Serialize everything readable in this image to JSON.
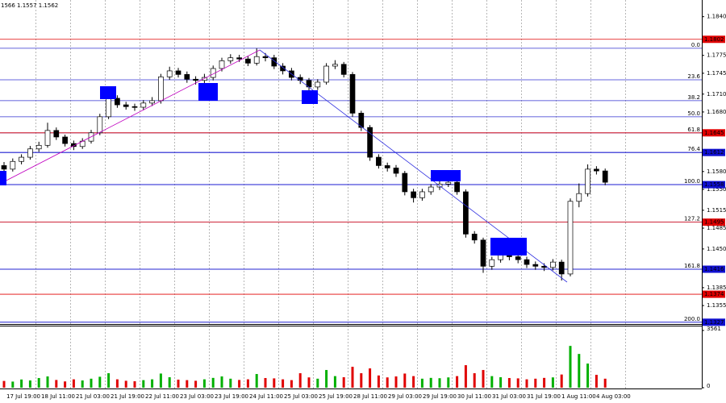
{
  "chart_data": {
    "type": "candlestick",
    "subtitle": "1566 1.1557 1.1562",
    "ylim": [
      1.1324,
      1.1868
    ],
    "yticks": [
      {
        "value": 1.184,
        "label": "1.1840"
      },
      1.1775,
      1.1745,
      {
        "value": 1.171,
        "label": "1.1710"
      },
      {
        "value": 1.168,
        "label": "1.1680"
      },
      {
        "value": 1.158,
        "label": "1.1580"
      },
      {
        "value": 1.155,
        "label": "1.1550"
      },
      1.1515,
      1.1485,
      {
        "value": 1.145,
        "label": "1.1450"
      },
      1.1385,
      1.1355
    ],
    "fib": [
      {
        "label": "0.0",
        "price": 1.1787
      },
      {
        "label": "23.6",
        "price": 1.1734
      },
      {
        "label": "38.2",
        "price": 1.1699
      },
      {
        "label": "50.0",
        "price": 1.1672
      },
      {
        "label": "61.8",
        "price": 1.1645
      },
      {
        "label": "76.4",
        "price": 1.1612
      },
      {
        "label": "100.0",
        "price": 1.1558
      },
      {
        "label": "127.2",
        "price": 1.1495
      },
      {
        "label": "161.8",
        "price": 1.1416
      },
      {
        "label": "200.0",
        "price": 1.1327
      }
    ],
    "levels": [
      {
        "price": 1.1802,
        "color": "#e00000"
      },
      {
        "price": 1.1645,
        "color": "#e00000"
      },
      {
        "price": 1.1612,
        "color": "#1010d0"
      },
      {
        "price": 1.1558,
        "color": "#1010d0"
      },
      {
        "price": 1.1495,
        "color": "#e00000"
      },
      {
        "price": 1.1416,
        "color": "#1010d0"
      },
      {
        "price": 1.1374,
        "color": "#e00000"
      },
      {
        "price": 1.1327,
        "color": "#1010d0"
      }
    ],
    "fib_color": "#3030d0",
    "up_color": "#ffffff",
    "down_color": "#000000",
    "wick_color": "#000000",
    "open": [
      1.159,
      1.1584,
      1.1597,
      1.1604,
      1.1618,
      1.1624,
      1.1649,
      1.1638,
      1.1627,
      1.1622,
      1.1631,
      1.1645,
      1.1672,
      1.1703,
      1.1692,
      1.1689,
      1.1688,
      1.1695,
      1.1699,
      1.1739,
      1.1749,
      1.1743,
      1.1735,
      1.1733,
      1.1738,
      1.1753,
      1.1766,
      1.1771,
      1.1769,
      1.1762,
      1.1773,
      1.1771,
      1.1757,
      1.1749,
      1.1738,
      1.1733,
      1.1722,
      1.173,
      1.1757,
      1.176,
      1.1743,
      1.1678,
      1.1654,
      1.1604,
      1.159,
      1.1586,
      1.1577,
      1.1546,
      1.1536,
      1.1546,
      1.1554,
      1.1559,
      1.1562,
      1.1546,
      1.1475,
      1.1465,
      1.1421,
      1.1432,
      1.1442,
      1.1437,
      1.1432,
      1.1424,
      1.1421,
      1.1419,
      1.1428,
      1.1408,
      1.153,
      1.1543,
      1.1584,
      1.1581
    ],
    "high": [
      1.1596,
      1.1602,
      1.1609,
      1.1623,
      1.163,
      1.1662,
      1.1654,
      1.1642,
      1.1632,
      1.1636,
      1.165,
      1.1677,
      1.1713,
      1.1708,
      1.1697,
      1.1694,
      1.17,
      1.1705,
      1.1744,
      1.1756,
      1.1754,
      1.1748,
      1.174,
      1.1744,
      1.1758,
      1.1771,
      1.1777,
      1.1776,
      1.1774,
      1.1787,
      1.1779,
      1.1776,
      1.1762,
      1.1754,
      1.1743,
      1.1737,
      1.1735,
      1.1762,
      1.1767,
      1.1764,
      1.1747,
      1.1682,
      1.1658,
      1.1609,
      1.1595,
      1.1591,
      1.1581,
      1.1551,
      1.1551,
      1.1559,
      1.1565,
      1.1568,
      1.1567,
      1.155,
      1.148,
      1.1469,
      1.1437,
      1.1453,
      1.1447,
      1.1442,
      1.1437,
      1.1429,
      1.1426,
      1.1433,
      1.1432,
      1.1535,
      1.156,
      1.1592,
      1.1589,
      1.1585
    ],
    "low": [
      1.1579,
      1.158,
      1.1592,
      1.16,
      1.1613,
      1.162,
      1.1633,
      1.1622,
      1.1616,
      1.1618,
      1.1627,
      1.1641,
      1.1668,
      1.1687,
      1.1684,
      1.1682,
      1.1683,
      1.169,
      1.1694,
      1.1734,
      1.1738,
      1.1729,
      1.1726,
      1.1728,
      1.1733,
      1.1748,
      1.1761,
      1.1764,
      1.1757,
      1.1758,
      1.1765,
      1.1752,
      1.1743,
      1.1733,
      1.1727,
      1.1716,
      1.1717,
      1.1726,
      1.1752,
      1.1738,
      1.1672,
      1.1648,
      1.1598,
      1.1585,
      1.158,
      1.1571,
      1.154,
      1.1528,
      1.1531,
      1.1541,
      1.1549,
      1.1554,
      1.1541,
      1.1469,
      1.1459,
      1.141,
      1.1415,
      1.1427,
      1.1431,
      1.1426,
      1.1418,
      1.1415,
      1.1413,
      1.1414,
      1.1397,
      1.1404,
      1.152,
      1.1538,
      1.1575,
      1.1557
    ],
    "close": [
      1.1584,
      1.1597,
      1.1604,
      1.1618,
      1.1624,
      1.1649,
      1.1638,
      1.1627,
      1.1622,
      1.1631,
      1.1645,
      1.1672,
      1.1703,
      1.1692,
      1.1689,
      1.1688,
      1.1695,
      1.1699,
      1.1739,
      1.1749,
      1.1743,
      1.1735,
      1.1733,
      1.1738,
      1.1753,
      1.1766,
      1.1771,
      1.1769,
      1.1762,
      1.1773,
      1.1771,
      1.1757,
      1.1749,
      1.1738,
      1.1733,
      1.1722,
      1.173,
      1.1757,
      1.176,
      1.1743,
      1.1678,
      1.1654,
      1.1604,
      1.159,
      1.1586,
      1.1577,
      1.1546,
      1.1536,
      1.1546,
      1.1554,
      1.1559,
      1.1562,
      1.1546,
      1.1475,
      1.1465,
      1.1421,
      1.1432,
      1.1442,
      1.1437,
      1.1432,
      1.1424,
      1.1421,
      1.1419,
      1.1428,
      1.1408,
      1.153,
      1.1543,
      1.1584,
      1.1581,
      1.1562
    ],
    "volume": [
      420,
      380,
      510,
      450,
      600,
      700,
      480,
      390,
      520,
      450,
      560,
      680,
      900,
      520,
      430,
      400,
      470,
      520,
      880,
      650,
      500,
      470,
      430,
      520,
      610,
      700,
      560,
      480,
      520,
      850,
      600,
      580,
      520,
      470,
      900,
      640,
      560,
      1100,
      720,
      650,
      1300,
      900,
      1200,
      760,
      640,
      700,
      880,
      720,
      560,
      610,
      590,
      640,
      720,
      1400,
      900,
      1100,
      720,
      650,
      600,
      580,
      520,
      560,
      610,
      640,
      820,
      2600,
      2100,
      1500,
      800,
      560
    ],
    "volume_up_color": "#00b000",
    "volume_down_color": "#e00000",
    "volume_ylim": [
      0,
      3561
    ],
    "volume_ticks": [
      0,
      3561
    ],
    "time_labels": [
      "17 Jul 19:00",
      "18 Jul 11:00",
      "21 Jul 03:00",
      "21 Jul 19:00",
      "22 Jul 11:00",
      "23 Jul 03:00",
      "23 Jul 19:00",
      "24 Jul 11:00",
      "25 Jul 03:00",
      "25 Jul 19:00",
      "28 Jul 11:00",
      "29 Jul 03:00",
      "29 Jul 19:00",
      "30 Jul 11:00",
      "31 Jul 03:00",
      "31 Jul 19:00",
      "1 Aug 11:00",
      "4 Aug 03:00"
    ]
  }
}
